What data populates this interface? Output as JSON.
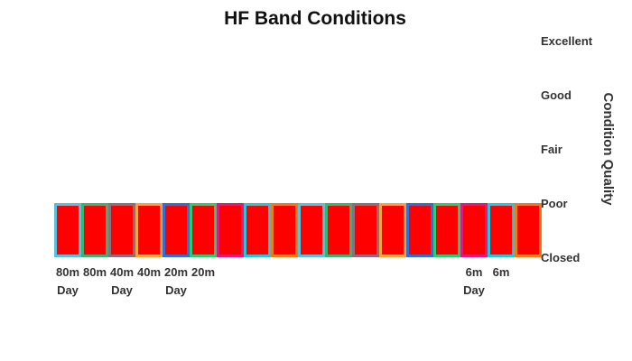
{
  "chart_data": {
    "type": "bar",
    "title": "HF Band Conditions",
    "xlabel": "",
    "ylabel": "Condition Quality",
    "y_axis_position": "right",
    "y_ticks": [
      "Closed",
      "Poor",
      "Fair",
      "Good",
      "Excellent"
    ],
    "ylim": [
      0,
      4
    ],
    "bar_fill": "#ff0000",
    "grid": false,
    "legend": "none",
    "x_tick_labels": [
      [
        "80m",
        "Day"
      ],
      [
        "80m"
      ],
      [
        "40m",
        "Day"
      ],
      [
        "40m"
      ],
      [
        "20m",
        "Day"
      ],
      [
        "20m"
      ],
      [
        ""
      ],
      [
        ""
      ],
      [
        ""
      ],
      [
        ""
      ],
      [
        ""
      ],
      [
        ""
      ],
      [
        ""
      ],
      [
        ""
      ],
      [
        ""
      ],
      [
        "6m",
        "Day"
      ],
      [
        "6m"
      ],
      [
        ""
      ]
    ],
    "values": [
      1,
      1,
      1,
      1,
      1,
      1,
      1,
      1,
      1,
      1,
      1,
      1,
      1,
      1,
      1,
      1,
      1,
      1
    ],
    "bar_borders": [
      "#5bc0de",
      "#3cb371",
      "#8c6f7a",
      "#ffa040",
      "#2f6fd6",
      "#2ecc71",
      "#e0197a",
      "#28c6d8",
      "#f07b1a",
      "#5bc0de",
      "#3cb371",
      "#8c6f7a",
      "#ffa040",
      "#2f6fd6",
      "#2ecc71",
      "#e0197a",
      "#28c6d8",
      "#f07b1a"
    ]
  }
}
